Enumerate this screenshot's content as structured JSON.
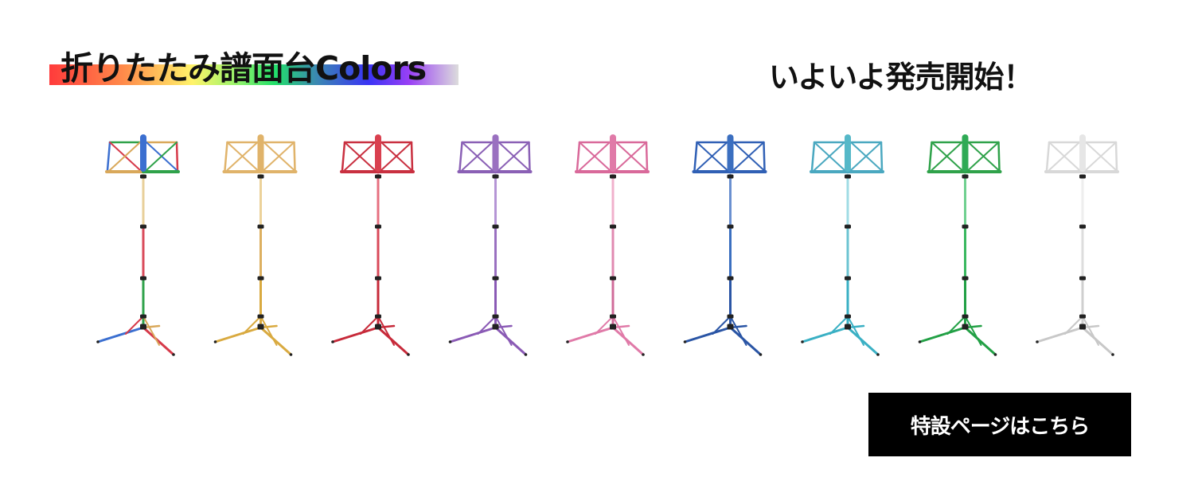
{
  "banner": {
    "title": "折りたたみ譜面台Colors",
    "headline": "いよいよ発売開始！",
    "cta_label": "特設ページはこちら"
  },
  "products": [
    {
      "name": "multicolor",
      "desk": "#3b6fd0",
      "frame": [
        "#2fa24a",
        "#d9a85a",
        "#d63a4a",
        "#3b6fd0"
      ],
      "upper": "#e8cf9a",
      "mid": "#d94a5a",
      "lower": "#2fa24a",
      "legs": [
        "#3b6fd0",
        "#d63a4a",
        "#d9a85a"
      ]
    },
    {
      "name": "gold",
      "desk": "#e0b36a",
      "frame": [
        "#e0b36a"
      ],
      "upper": "#ecd29a",
      "mid": "#ddb060",
      "lower": "#d9aa40",
      "legs": [
        "#d9aa40"
      ]
    },
    {
      "name": "red",
      "desk": "#d9404f",
      "frame": [
        "#c93040"
      ],
      "upper": "#e67080",
      "mid": "#d94a5a",
      "lower": "#c72a3a",
      "legs": [
        "#c72a3a"
      ]
    },
    {
      "name": "purple",
      "desk": "#9a70c0",
      "frame": [
        "#8a60b5"
      ],
      "upper": "#b595d5",
      "mid": "#9a70c0",
      "lower": "#8a5ab5",
      "legs": [
        "#8a5ab5"
      ]
    },
    {
      "name": "pink",
      "desk": "#e07aa8",
      "frame": [
        "#d9699a"
      ],
      "upper": "#f0b0cc",
      "mid": "#e08ab0",
      "lower": "#d06c9a",
      "legs": [
        "#e07aa8"
      ]
    },
    {
      "name": "blue",
      "desk": "#3b6fc0",
      "frame": [
        "#3060b5"
      ],
      "upper": "#6a90d0",
      "mid": "#3b6fc0",
      "lower": "#2a55a5",
      "legs": [
        "#2a55a5"
      ]
    },
    {
      "name": "turquoise",
      "desk": "#55b8c8",
      "frame": [
        "#4aa8c0"
      ],
      "upper": "#a0dce5",
      "mid": "#6cc4d2",
      "lower": "#3ab0c4",
      "legs": [
        "#3ab0c4"
      ]
    },
    {
      "name": "green",
      "desk": "#2faa55",
      "frame": [
        "#2fa24a"
      ],
      "upper": "#70d090",
      "mid": "#3ab860",
      "lower": "#22a045",
      "legs": [
        "#22a045"
      ]
    },
    {
      "name": "silver",
      "desk": "#e6e6e6",
      "frame": [
        "#d8d8d8"
      ],
      "upper": "#eeeeee",
      "mid": "#dddddd",
      "lower": "#cfcfcf",
      "legs": [
        "#c8c8c8"
      ]
    }
  ]
}
